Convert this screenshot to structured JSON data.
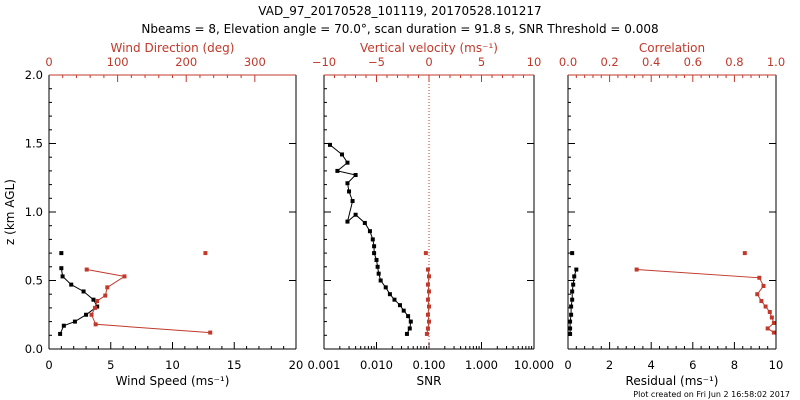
{
  "title_line1": "VAD_97_20170528_101119, 20170528.101217",
  "title_line2": "Nbeams = 8, Elevation angle = 70.0°, scan duration = 91.8 s, SNR Threshold = 0.008",
  "footer": "Plot created on Fri Jun  2 16:58:02 2017",
  "colors": {
    "primary": "#000000",
    "secondary": "#c0392b"
  },
  "chart_data": [
    {
      "type": "line",
      "ylabel": "z (km AGL)",
      "ylim": [
        0,
        2.0
      ],
      "yticks": [
        0.0,
        0.5,
        1.0,
        1.5,
        2.0
      ],
      "ytick_labels": [
        "0.0",
        "0.5",
        "1.0",
        "1.5",
        "2.0"
      ],
      "xlabel": "Wind Speed (ms⁻¹)",
      "xlim": [
        0,
        20
      ],
      "xticks": [
        0,
        5,
        10,
        15,
        20
      ],
      "xtick_labels": [
        "0",
        "5",
        "10",
        "15",
        "20"
      ],
      "top_xlabel": "Wind Direction (deg)",
      "top_xlim": [
        0,
        360
      ],
      "top_xticks": [
        0,
        100,
        200,
        300
      ],
      "top_xtick_labels": [
        "0",
        "100",
        "200",
        "300"
      ],
      "series": [
        {
          "axis": "bottom",
          "color": "black",
          "x": [
            1.0,
            1.1,
            1.8,
            2.8,
            3.6,
            3.9,
            3.0,
            2.1,
            1.2,
            0.9
          ],
          "y": [
            0.59,
            0.53,
            0.47,
            0.42,
            0.36,
            0.31,
            0.25,
            0.2,
            0.17,
            0.11
          ],
          "isolated": {
            "x": 1.0,
            "y": 0.7
          }
        },
        {
          "axis": "top",
          "color": "red",
          "x": [
            55,
            110,
            85,
            82,
            70,
            67,
            62,
            68,
            235
          ],
          "y": [
            0.58,
            0.53,
            0.45,
            0.39,
            0.35,
            0.3,
            0.25,
            0.18,
            0.12
          ],
          "isolated": {
            "x": 228,
            "y": 0.7
          }
        }
      ]
    },
    {
      "type": "line",
      "xlabel": "SNR",
      "xscale": "log",
      "xlim": [
        0.001,
        10.0
      ],
      "xticks": [
        0.001,
        0.01,
        0.1,
        1.0,
        10.0
      ],
      "xtick_labels": [
        "0.001",
        "0.010",
        "0.100",
        "1.000",
        "10.000"
      ],
      "top_xlabel": "Vertical velocity (ms⁻¹)",
      "top_xlim": [
        -10,
        10
      ],
      "top_xticks": [
        -10,
        -5,
        0,
        5,
        10
      ],
      "top_xtick_labels": [
        "−10",
        "−5",
        "0",
        "5",
        "10"
      ],
      "top_reference_line": 0,
      "series": [
        {
          "axis": "bottom",
          "color": "black",
          "x": [
            0.0013,
            0.0022,
            0.0028,
            0.0018,
            0.004,
            0.0028,
            0.003,
            0.0035,
            0.0028,
            0.004,
            0.006,
            0.0075,
            0.0085,
            0.009,
            0.009,
            0.01,
            0.0105,
            0.011,
            0.012,
            0.015,
            0.018,
            0.022,
            0.028,
            0.033,
            0.04,
            0.045,
            0.043,
            0.038
          ],
          "y": [
            1.49,
            1.42,
            1.36,
            1.3,
            1.27,
            1.21,
            1.15,
            1.08,
            0.93,
            0.98,
            0.92,
            0.86,
            0.8,
            0.75,
            0.7,
            0.65,
            0.6,
            0.55,
            0.5,
            0.45,
            0.4,
            0.36,
            0.32,
            0.28,
            0.24,
            0.2,
            0.15,
            0.11
          ]
        },
        {
          "axis": "top",
          "color": "red",
          "x": [
            -0.1,
            0.0,
            -0.1,
            0.0,
            -0.1,
            0.0,
            -0.1,
            0.0,
            -0.1,
            -0.2
          ],
          "y": [
            0.58,
            0.53,
            0.47,
            0.42,
            0.36,
            0.31,
            0.25,
            0.2,
            0.15,
            0.11
          ],
          "isolated": {
            "x": -0.3,
            "y": 0.7
          }
        }
      ]
    },
    {
      "type": "line",
      "xlabel": "Residual (ms⁻¹)",
      "xlim": [
        0,
        10
      ],
      "xticks": [
        0,
        2,
        4,
        6,
        8,
        10
      ],
      "xtick_labels": [
        "0",
        "2",
        "4",
        "6",
        "8",
        "10"
      ],
      "top_xlabel": "Correlation",
      "top_xlim": [
        0,
        1.0
      ],
      "top_xticks": [
        0.0,
        0.2,
        0.4,
        0.6,
        0.8,
        1.0
      ],
      "top_xtick_labels": [
        "0.0",
        "0.2",
        "0.4",
        "0.6",
        "0.8",
        "1.0"
      ],
      "series": [
        {
          "axis": "bottom",
          "color": "black",
          "x": [
            0.4,
            0.3,
            0.25,
            0.2,
            0.2,
            0.15,
            0.15,
            0.1,
            0.1,
            0.1
          ],
          "y": [
            0.58,
            0.53,
            0.47,
            0.42,
            0.36,
            0.31,
            0.25,
            0.2,
            0.15,
            0.11
          ],
          "isolated": {
            "x": 0.2,
            "y": 0.7
          }
        },
        {
          "axis": "top",
          "color": "red",
          "x": [
            0.33,
            0.92,
            0.94,
            0.91,
            0.93,
            0.95,
            0.97,
            0.98,
            0.99,
            0.96,
            0.99
          ],
          "y": [
            0.58,
            0.52,
            0.46,
            0.4,
            0.35,
            0.31,
            0.27,
            0.23,
            0.19,
            0.15,
            0.12
          ],
          "isolated": {
            "x": 0.85,
            "y": 0.7
          }
        }
      ]
    }
  ]
}
